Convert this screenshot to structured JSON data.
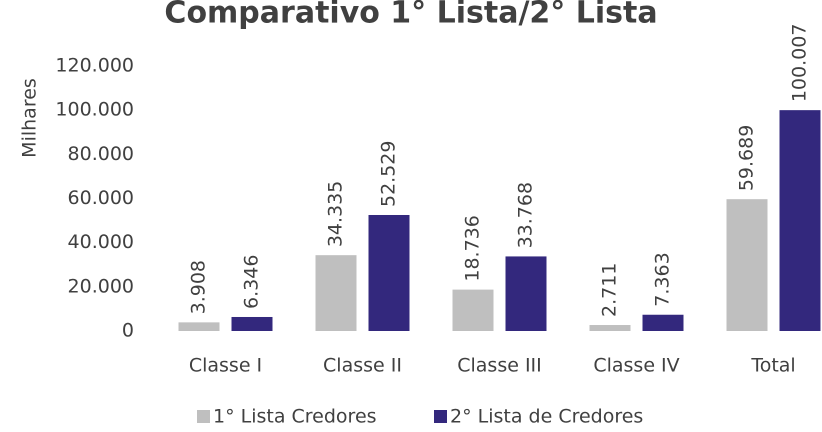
{
  "chart_data": {
    "type": "bar",
    "title": "Comparativo 1° Lista/2° Lista",
    "y_label": "Milhares",
    "categories": [
      "Classe I",
      "Classe II",
      "Classe III",
      "Classe IV",
      "Total"
    ],
    "series": [
      {
        "name": "1° Lista Credores",
        "color": "#bfbfbf",
        "values": [
          3908,
          34335,
          18736,
          2711,
          59689
        ],
        "value_labels": [
          "3.908",
          "34.335",
          "18.736",
          "2.711",
          "59.689"
        ]
      },
      {
        "name": "2° Lista de Credores",
        "color": "#33287d",
        "values": [
          6346,
          52529,
          33768,
          7363,
          100007
        ],
        "value_labels": [
          "6.346",
          "52.529",
          "33.768",
          "7.363",
          "100.007"
        ]
      }
    ],
    "ylim": [
      0,
      120000
    ],
    "yticks": [
      0,
      {
        "value": 20000,
        "label": "20.000"
      },
      {
        "value": 40000,
        "label": "40.000"
      },
      {
        "value": 60000,
        "label": "60.000"
      },
      {
        "value": 80000,
        "label": "80.000"
      },
      {
        "value": 100000,
        "label": "100.000"
      },
      {
        "value": 120000,
        "label": "120.000"
      }
    ],
    "grid": false,
    "legend": "bottom"
  }
}
